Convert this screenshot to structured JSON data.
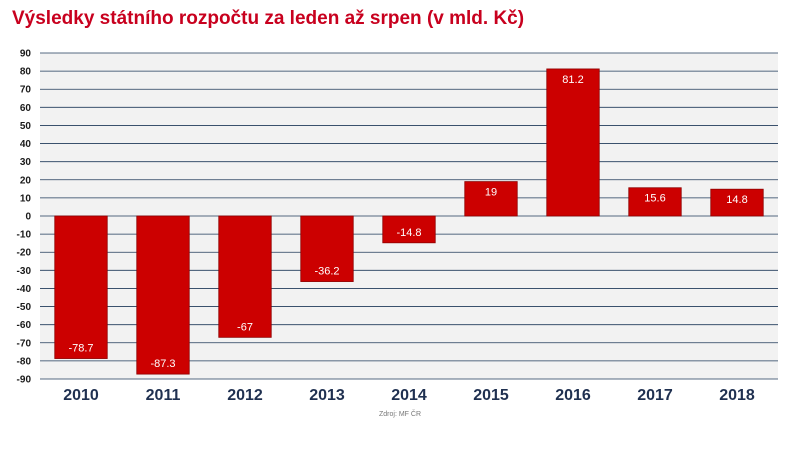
{
  "chart_data": {
    "type": "bar",
    "title": "Výsledky státního rozpočtu za leden až srpen (v mld. Kč)",
    "categories": [
      "2010",
      "2011",
      "2012",
      "2013",
      "2014",
      "2015",
      "2016",
      "2017",
      "2018"
    ],
    "values": [
      -78.7,
      -87.3,
      -67,
      -36.2,
      -14.8,
      19,
      81.2,
      15.6,
      14.8
    ],
    "value_labels": [
      "-78.7",
      "-87.3",
      "-67",
      "-36.2",
      "-14.8",
      "19",
      "81.2",
      "15.6",
      "14.8"
    ],
    "ylim": [
      -90,
      90
    ],
    "ytick_step": 10,
    "grid": true,
    "xlabel": "",
    "ylabel": "",
    "source": "Zdroj: MF ČR",
    "colors": {
      "bar": "#cc0000",
      "bar_edge": "#8f0000",
      "title": "#c8001e",
      "category_label": "#1f3050",
      "grid": "#1f3a5a",
      "plot_bg": "#f2f2f2"
    }
  }
}
